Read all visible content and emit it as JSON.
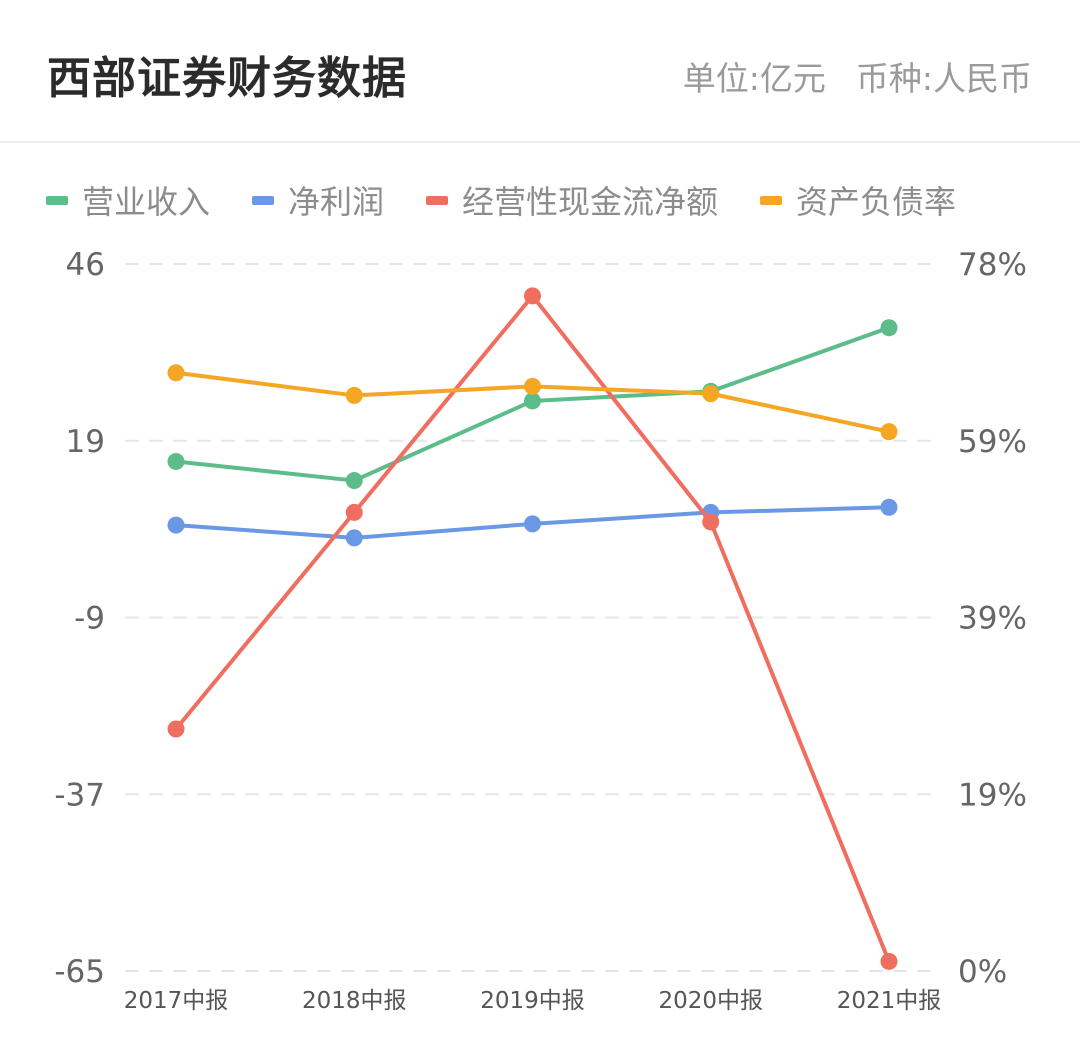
{
  "header": {
    "title": "西部证券财务数据",
    "unit_label": "单位:亿元",
    "currency_label": "币种:人民币"
  },
  "chart_data": {
    "type": "line",
    "categories": [
      "2017中报",
      "2018中报",
      "2019中报",
      "2020中报",
      "2021中报"
    ],
    "left_axis": {
      "ticks": [
        "46",
        "19",
        "-9",
        "-37",
        "-65"
      ],
      "ylim": [
        -65,
        46
      ]
    },
    "right_axis": {
      "ticks": [
        "78%",
        "59%",
        "39%",
        "19%",
        "0%"
      ],
      "ylim": [
        0,
        78
      ]
    },
    "grid": true,
    "legend_position": "top",
    "series": [
      {
        "name": "营业收入",
        "axis": "left",
        "color": "#5dbd8a",
        "values": [
          15,
          12,
          24.5,
          26,
          36
        ]
      },
      {
        "name": "净利润",
        "axis": "left",
        "color": "#6a98e4",
        "values": [
          5,
          3,
          5.2,
          7,
          7.8
        ]
      },
      {
        "name": "经营性现金流净额",
        "axis": "left",
        "color": "#f06e5f",
        "values": [
          -27,
          7,
          41,
          5.5,
          -63.5
        ]
      },
      {
        "name": "资产负债率",
        "axis": "right",
        "color": "#f5a623",
        "values": [
          66,
          63.5,
          64.5,
          63.7,
          59.5
        ]
      }
    ]
  }
}
